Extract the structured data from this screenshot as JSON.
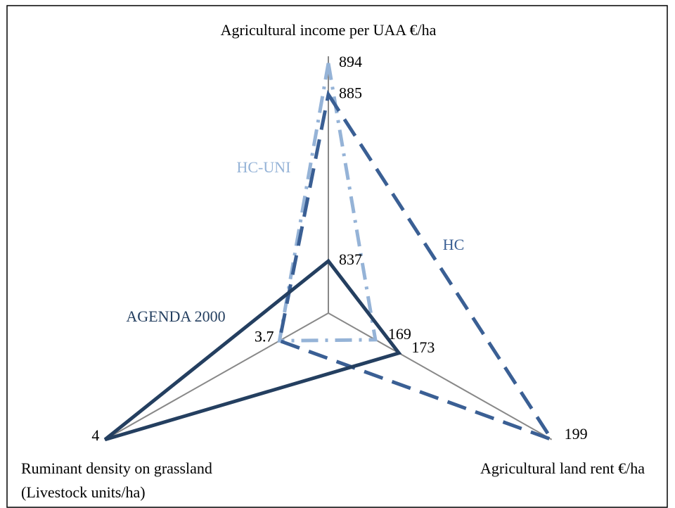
{
  "chart_data": {
    "type": "radar",
    "axes": [
      {
        "label": [
          "Agricultural income per UAA €/ha"
        ],
        "lim": [
          822,
          896
        ]
      },
      {
        "label": [
          "Agricultural land rent €/ha"
        ],
        "lim": [
          161,
          199
        ]
      },
      {
        "label": [
          "Ruminant density on grassland",
          "(Livestock units/ha)"
        ],
        "lim": [
          3.616,
          4
        ]
      }
    ],
    "series": [
      {
        "name": "AGENDA 2000",
        "color": "#243f60",
        "dash": "none",
        "width": 5,
        "values": [
          837,
          173,
          4
        ]
      },
      {
        "name": "HC",
        "color": "#3a5f94",
        "dash": "28 14",
        "width": 5,
        "values": [
          885,
          199,
          3.7
        ]
      },
      {
        "name": "HC-UNI",
        "color": "#95b3d7",
        "dash": "24 10 4 10",
        "width": 5,
        "values": [
          894,
          169,
          3.7
        ]
      }
    ]
  }
}
